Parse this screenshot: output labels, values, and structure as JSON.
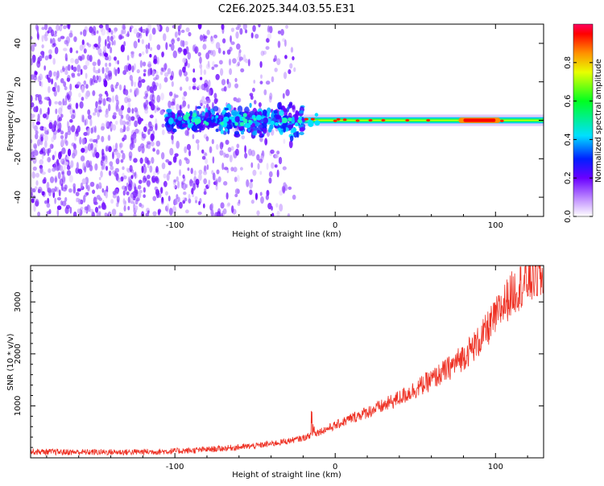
{
  "title": "C2E6.2025.344.03.55.E31",
  "chart_data": [
    {
      "type": "heatmap",
      "xlabel": "Height of straight line (km)",
      "ylabel": "Frequency (Hz)",
      "xlim": [
        -190,
        130
      ],
      "ylim": [
        -50,
        50
      ],
      "xticks": [
        -100,
        0,
        100
      ],
      "yticks": [
        -40,
        -20,
        0,
        20,
        40
      ],
      "colorbar": {
        "label": "Normalized spectral amplitude",
        "range": [
          0.0,
          1.0
        ],
        "ticks": [
          "0.0",
          "0.2",
          "0.4",
          "0.6",
          "0.8"
        ],
        "tick_values": [
          0.0,
          0.2,
          0.4,
          0.6,
          0.8
        ]
      },
      "features": {
        "noise_region_x": [
          -190,
          -35
        ],
        "onset_x": -105,
        "carrier_center_hz": 0,
        "peak_amplitude_x": [
          80,
          105
        ]
      }
    },
    {
      "type": "line",
      "xlabel": "Height of straight line (km)",
      "ylabel": "SNR (10 * v/v)",
      "xlim": [
        -190,
        130
      ],
      "ylim": [
        0,
        3700
      ],
      "xticks": [
        -100,
        0,
        100
      ],
      "yticks": [
        1000,
        2000,
        3000
      ],
      "color": "#ee3124",
      "series": [
        {
          "x": [
            -190,
            -170,
            -150,
            -130,
            -110,
            -90,
            -70,
            -50,
            -40,
            -30,
            -20,
            -10,
            0,
            10,
            20,
            30,
            40,
            50,
            60,
            70,
            80,
            90,
            100,
            105,
            110,
            115,
            120,
            125,
            130
          ],
          "y": [
            120,
            110,
            110,
            110,
            120,
            140,
            180,
            230,
            270,
            320,
            380,
            500,
            620,
            760,
            880,
            1000,
            1150,
            1320,
            1500,
            1700,
            1950,
            2250,
            2700,
            2950,
            3150,
            3300,
            3400,
            3500,
            3450
          ]
        }
      ],
      "annotations": [
        {
          "x": -15,
          "y": 1200,
          "text": ""
        }
      ]
    }
  ]
}
